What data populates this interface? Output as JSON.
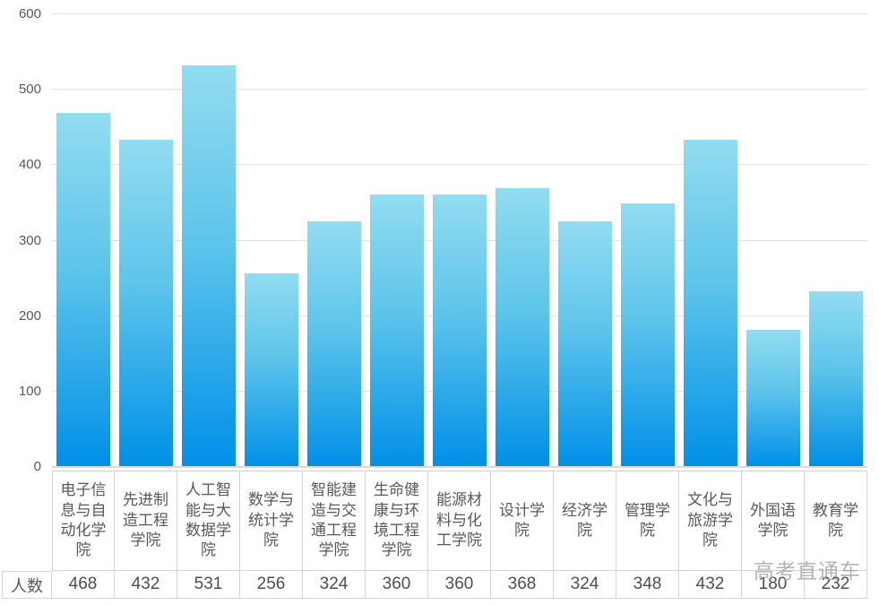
{
  "chart_data": {
    "type": "bar",
    "categories": [
      "电子信息与自动化学院",
      "先进制造工程学院",
      "人工智能与大数据学院",
      "数学与统计学院",
      "智能建造与交通工程学院",
      "生命健康与环境工程学院",
      "能源材料与化工学院",
      "设计学院",
      "经济学院",
      "管理学院",
      "文化与旅游学院",
      "外国语学院",
      "教育学院"
    ],
    "values": [
      468,
      432,
      531,
      256,
      324,
      360,
      360,
      368,
      324,
      348,
      432,
      180,
      232
    ],
    "series_name": "人数",
    "title": "",
    "xlabel": "",
    "ylabel": "",
    "ylim": [
      0,
      600
    ],
    "yticks": [
      0,
      100,
      200,
      300,
      400,
      500,
      600
    ],
    "grid": true,
    "legend_position": "none",
    "data_table_shown": true,
    "bar_gradient_top": "#92dcf0",
    "bar_gradient_bottom": "#0090e8"
  },
  "watermark": "高考直通车",
  "colors": {
    "gridline": "#e3e3e3",
    "axis_text": "#595959",
    "table_border": "#d4d4d4",
    "watermark_text": "#a8a8a8"
  }
}
